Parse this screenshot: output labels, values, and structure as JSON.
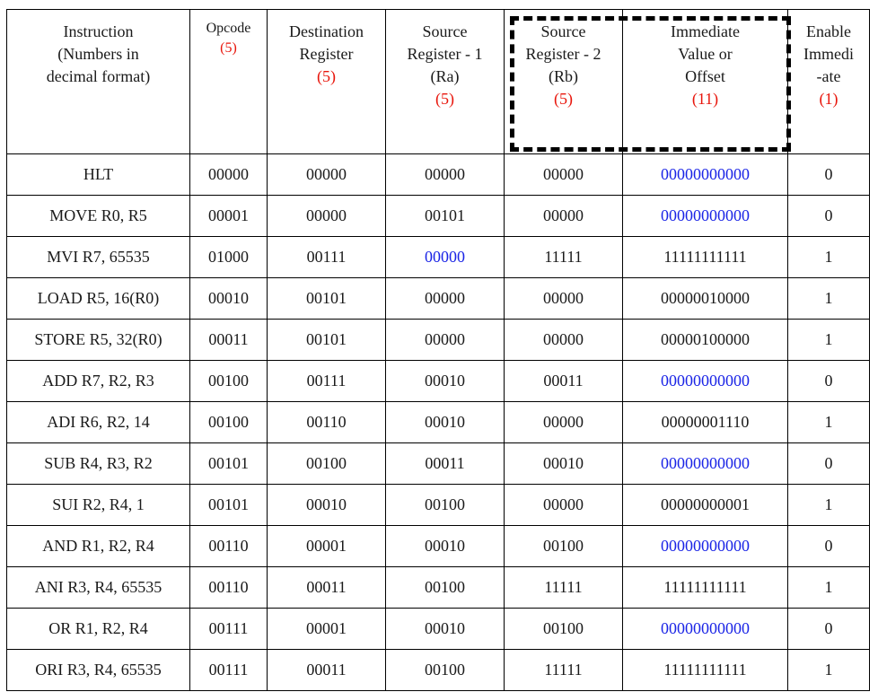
{
  "headers": [
    {
      "lines": [
        "Instruction",
        "(Numbers in",
        "decimal format)"
      ],
      "bits": ""
    },
    {
      "lines": [
        "Opcode"
      ],
      "bits": "(5)"
    },
    {
      "lines": [
        "Destination",
        "Register"
      ],
      "bits": "(5)"
    },
    {
      "lines": [
        "Source",
        "Register - 1",
        "(Ra)"
      ],
      "bits": "(5)"
    },
    {
      "lines": [
        "Source",
        "Register - 2",
        "(Rb)"
      ],
      "bits": "(5)"
    },
    {
      "lines": [
        "Immediate",
        "Value or",
        "Offset"
      ],
      "bits": "(11)"
    },
    {
      "lines": [
        "Enable",
        "Immedi",
        "-ate"
      ],
      "bits": "(1)"
    }
  ],
  "colors": {
    "bits": "#e8160c",
    "unused": "#1a24e6"
  },
  "rows": [
    {
      "instr": "HLT",
      "opcode": "00000",
      "dest": "00000",
      "ra": "00000",
      "rb": "00000",
      "imm": "00000000000",
      "en": "0",
      "blue": [
        "imm"
      ]
    },
    {
      "instr": "MOVE R0, R5",
      "opcode": "00001",
      "dest": "00000",
      "ra": "00101",
      "rb": "00000",
      "imm": "00000000000",
      "en": "0",
      "blue": [
        "imm"
      ]
    },
    {
      "instr": "MVI R7, 65535",
      "opcode": "01000",
      "dest": "00111",
      "ra": "00000",
      "rb": "11111",
      "imm": "11111111111",
      "en": "1",
      "blue": [
        "ra"
      ]
    },
    {
      "instr": "LOAD R5, 16(R0)",
      "opcode": "00010",
      "dest": "00101",
      "ra": "00000",
      "rb": "00000",
      "imm": "00000010000",
      "en": "1",
      "blue": []
    },
    {
      "instr": "STORE R5, 32(R0)",
      "opcode": "00011",
      "dest": "00101",
      "ra": "00000",
      "rb": "00000",
      "imm": "00000100000",
      "en": "1",
      "blue": []
    },
    {
      "instr": "ADD R7, R2, R3",
      "opcode": "00100",
      "dest": "00111",
      "ra": "00010",
      "rb": "00011",
      "imm": "00000000000",
      "en": "0",
      "blue": [
        "imm"
      ]
    },
    {
      "instr": "ADI R6, R2, 14",
      "opcode": "00100",
      "dest": "00110",
      "ra": "00010",
      "rb": "00000",
      "imm": "00000001110",
      "en": "1",
      "blue": []
    },
    {
      "instr": "SUB R4, R3, R2",
      "opcode": "00101",
      "dest": "00100",
      "ra": "00011",
      "rb": "00010",
      "imm": "00000000000",
      "en": "0",
      "blue": [
        "imm"
      ]
    },
    {
      "instr": "SUI R2, R4, 1",
      "opcode": "00101",
      "dest": "00010",
      "ra": "00100",
      "rb": "00000",
      "imm": "00000000001",
      "en": "1",
      "blue": []
    },
    {
      "instr": "AND R1, R2, R4",
      "opcode": "00110",
      "dest": "00001",
      "ra": "00010",
      "rb": "00100",
      "imm": "00000000000",
      "en": "0",
      "blue": [
        "imm"
      ]
    },
    {
      "instr": "ANI R3, R4, 65535",
      "opcode": "00110",
      "dest": "00011",
      "ra": "00100",
      "rb": "11111",
      "imm": "11111111111",
      "en": "1",
      "blue": []
    },
    {
      "instr": "OR R1, R2, R4",
      "opcode": "00111",
      "dest": "00001",
      "ra": "00010",
      "rb": "00100",
      "imm": "00000000000",
      "en": "0",
      "blue": [
        "imm"
      ]
    },
    {
      "instr": "ORI R3, R4, 65535",
      "opcode": "00111",
      "dest": "00011",
      "ra": "00100",
      "rb": "11111",
      "imm": "11111111111",
      "en": "1",
      "blue": []
    }
  ]
}
